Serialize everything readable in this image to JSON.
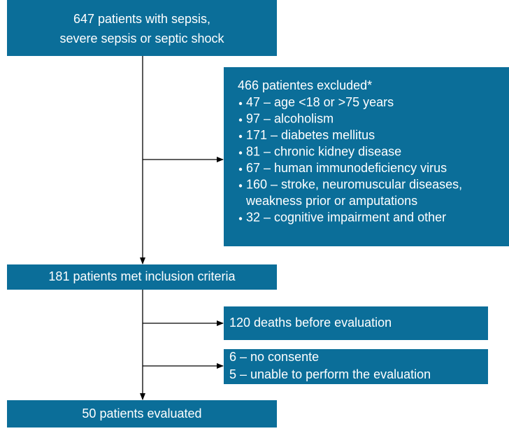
{
  "nodes": [
    {
      "lines": [
        "647 patients with sepsis,",
        "severe sepsis or septic shock"
      ]
    },
    {
      "title": "466 patientes excluded*",
      "items": [
        {
          "lines": [
            "47 – age <18 or >75 years"
          ]
        },
        {
          "lines": [
            "97 – alcoholism"
          ]
        },
        {
          "lines": [
            "171 – diabetes mellitus"
          ]
        },
        {
          "lines": [
            "81 – chronic kidney disease"
          ]
        },
        {
          "lines": [
            "67 – human immunodeficiency virus"
          ]
        },
        {
          "lines": [
            "160 – stroke, neuromuscular diseases,",
            "weakness prior or amputations"
          ]
        },
        {
          "lines": [
            "32 – cognitive impairment and other"
          ]
        }
      ]
    },
    {
      "lines": [
        "181 patients met inclusion criteria"
      ]
    },
    {
      "lines": [
        "120 deaths before evaluation"
      ]
    },
    {
      "lines": [
        "6 – no consente",
        "5 – unable to perform the evaluation"
      ]
    },
    {
      "lines": [
        "50 patients evaluated"
      ]
    }
  ]
}
